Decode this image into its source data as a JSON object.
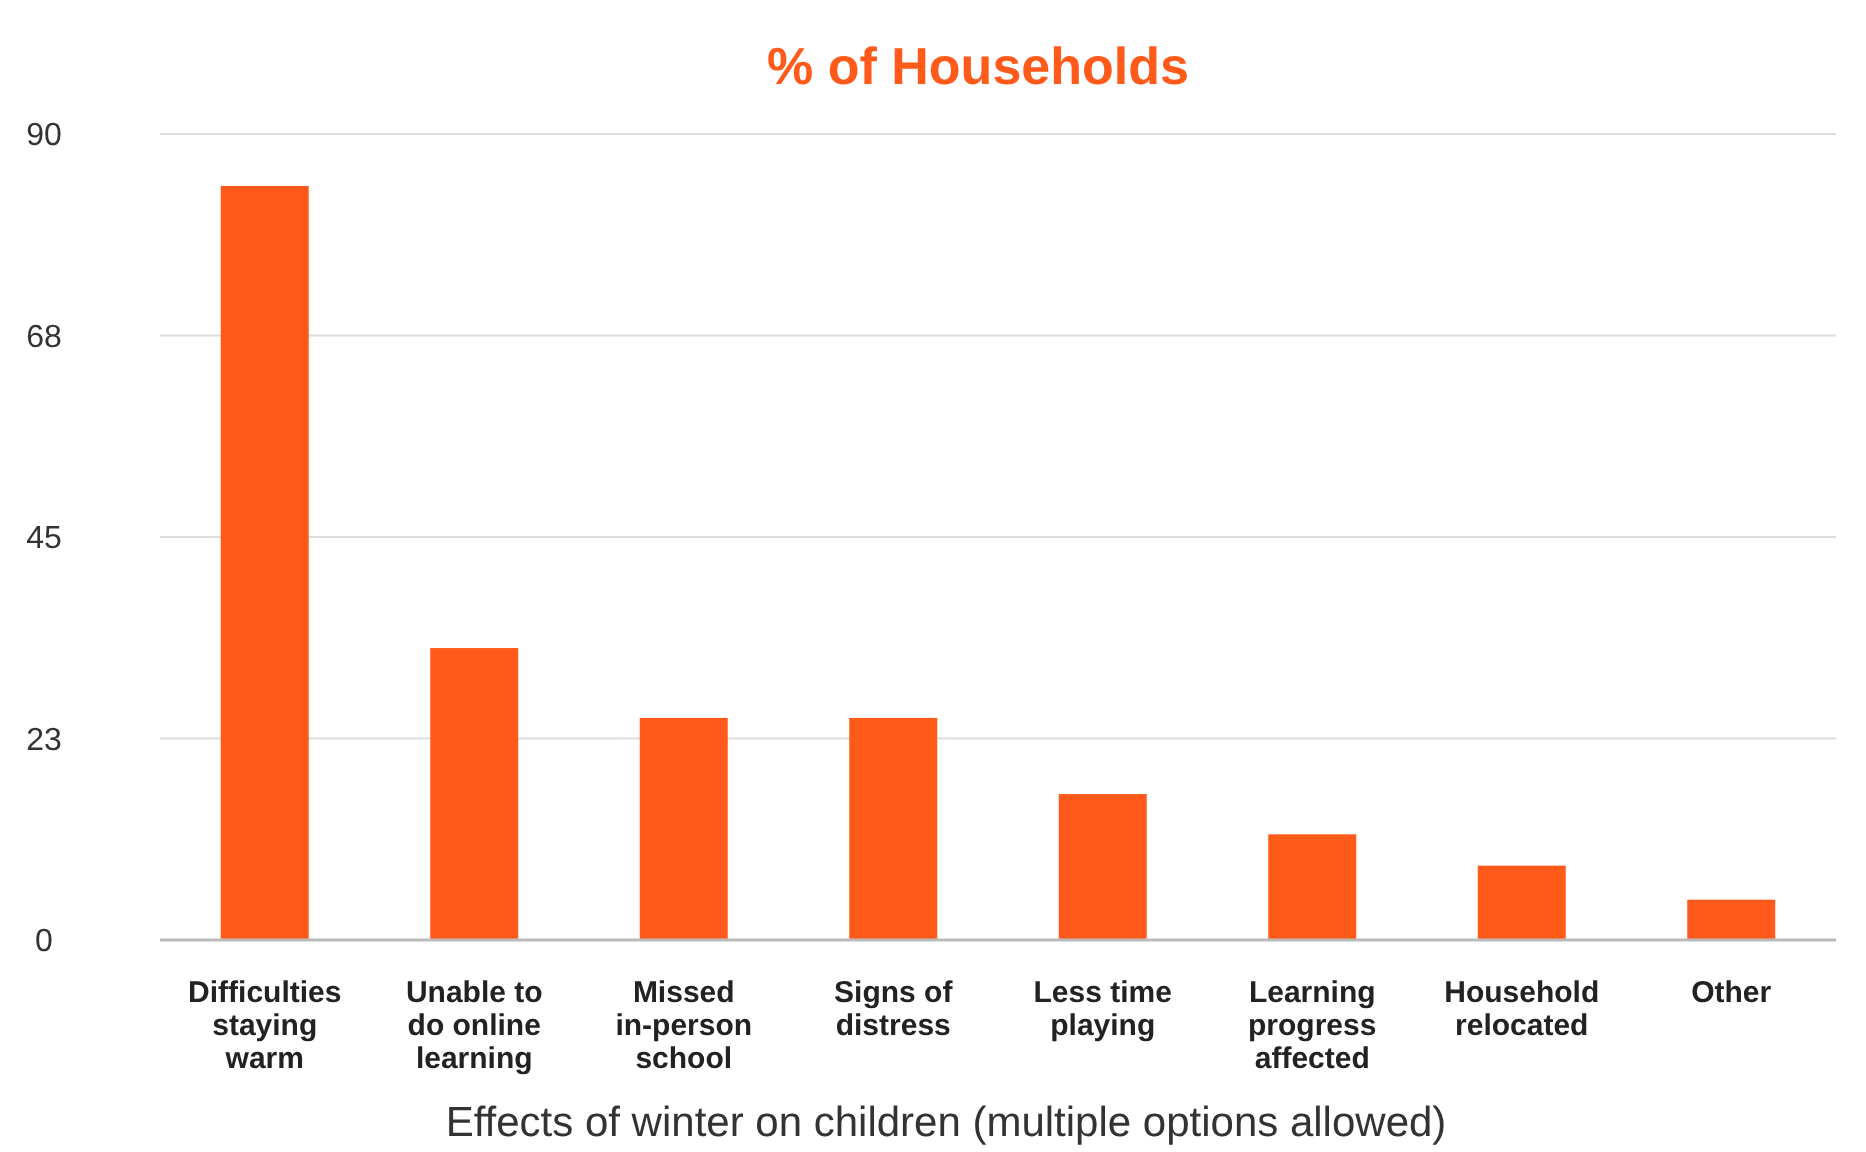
{
  "chart_data": {
    "type": "bar",
    "title": "% of Households",
    "xlabel": "Effects of winter on children (multiple options allowed)",
    "categories": [
      "Difficulties staying warm",
      "Unable to do online learning",
      "Missed in-person school",
      "Signs of distress",
      "Less time playing",
      "Learning progress affected",
      "Household relocated",
      "Other"
    ],
    "values": [
      84.2,
      32.6,
      24.8,
      24.8,
      16.3,
      11.8,
      8.3,
      4.5
    ],
    "color": "#ff5a1a",
    "ylim": [
      0,
      90
    ],
    "yticks": [
      0,
      {
        "value": 22.5,
        "label": "23"
      },
      45,
      {
        "value": 67.5,
        "label": "68"
      },
      90
    ],
    "grid": "y"
  }
}
